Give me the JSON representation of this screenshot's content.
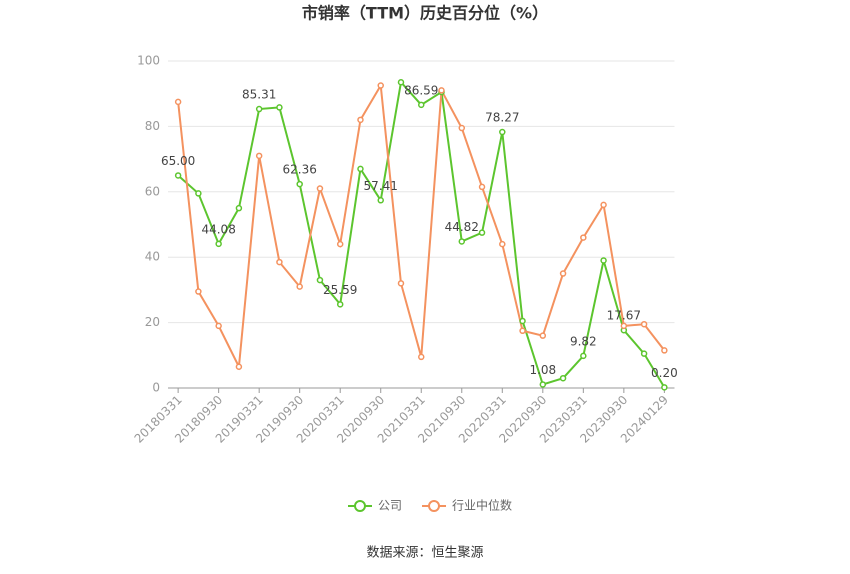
{
  "chart_data": {
    "type": "line",
    "title": "市销率（TTM）历史百分位（%）",
    "source": "数据来源：恒生聚源",
    "categories": [
      "20180331",
      null,
      "20180930",
      null,
      "20190331",
      null,
      "20190930",
      null,
      "20200331",
      null,
      "20200930",
      null,
      "20210331",
      null,
      "20210930",
      null,
      "20220331",
      null,
      "20220930",
      null,
      "20230331",
      null,
      "20230930",
      null,
      "20240129"
    ],
    "series": [
      {
        "name": "公司",
        "color": "#5cc52e",
        "values": [
          65.0,
          59.5,
          44.08,
          55,
          85.31,
          85.8,
          62.36,
          33,
          25.59,
          67,
          57.41,
          93.5,
          86.59,
          90.5,
          44.82,
          47.5,
          78.27,
          20.5,
          1.08,
          3,
          9.82,
          39,
          17.67,
          10.5,
          0.2
        ],
        "value_labels": [
          "65.00",
          null,
          "44.08",
          null,
          "85.31",
          null,
          "62.36",
          null,
          "25.59",
          null,
          "57.41",
          null,
          "86.59",
          null,
          "44.82",
          null,
          "78.27",
          null,
          "1.08",
          null,
          "9.82",
          null,
          "17.67",
          null,
          "0.20"
        ]
      },
      {
        "name": "行业中位数",
        "color": "#f4925f",
        "values": [
          87.5,
          29.5,
          19,
          6.5,
          71,
          38.5,
          31,
          61,
          44,
          82,
          92.5,
          32,
          9.5,
          91,
          79.5,
          61.5,
          44,
          17.5,
          16,
          35,
          46,
          56,
          19,
          19.5,
          11.5
        ]
      }
    ],
    "ylim": [
      0,
      100
    ],
    "yticks": [
      0,
      20,
      40,
      60,
      80,
      100
    ],
    "grid": true
  }
}
